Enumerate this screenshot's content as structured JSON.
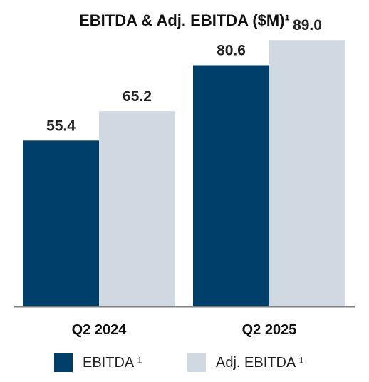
{
  "chart_data": {
    "type": "bar",
    "title": "EBITDA & Adj. EBITDA ($M)¹",
    "categories": [
      "Q2 2024",
      "Q2 2025"
    ],
    "series": [
      {
        "name": "EBITDA ¹",
        "values": [
          55.4,
          80.6
        ],
        "value_labels": [
          "55.4",
          "80.6"
        ],
        "color": "#003f6a"
      },
      {
        "name": "Adj. EBITDA ¹",
        "values": [
          65.2,
          89.0
        ],
        "value_labels": [
          "65.2",
          "89.0"
        ],
        "color": "#d0d9e2"
      }
    ],
    "ylim": [
      0,
      100
    ],
    "grid": false,
    "legend_position": "bottom",
    "axis_color": "#7f7f7f"
  }
}
